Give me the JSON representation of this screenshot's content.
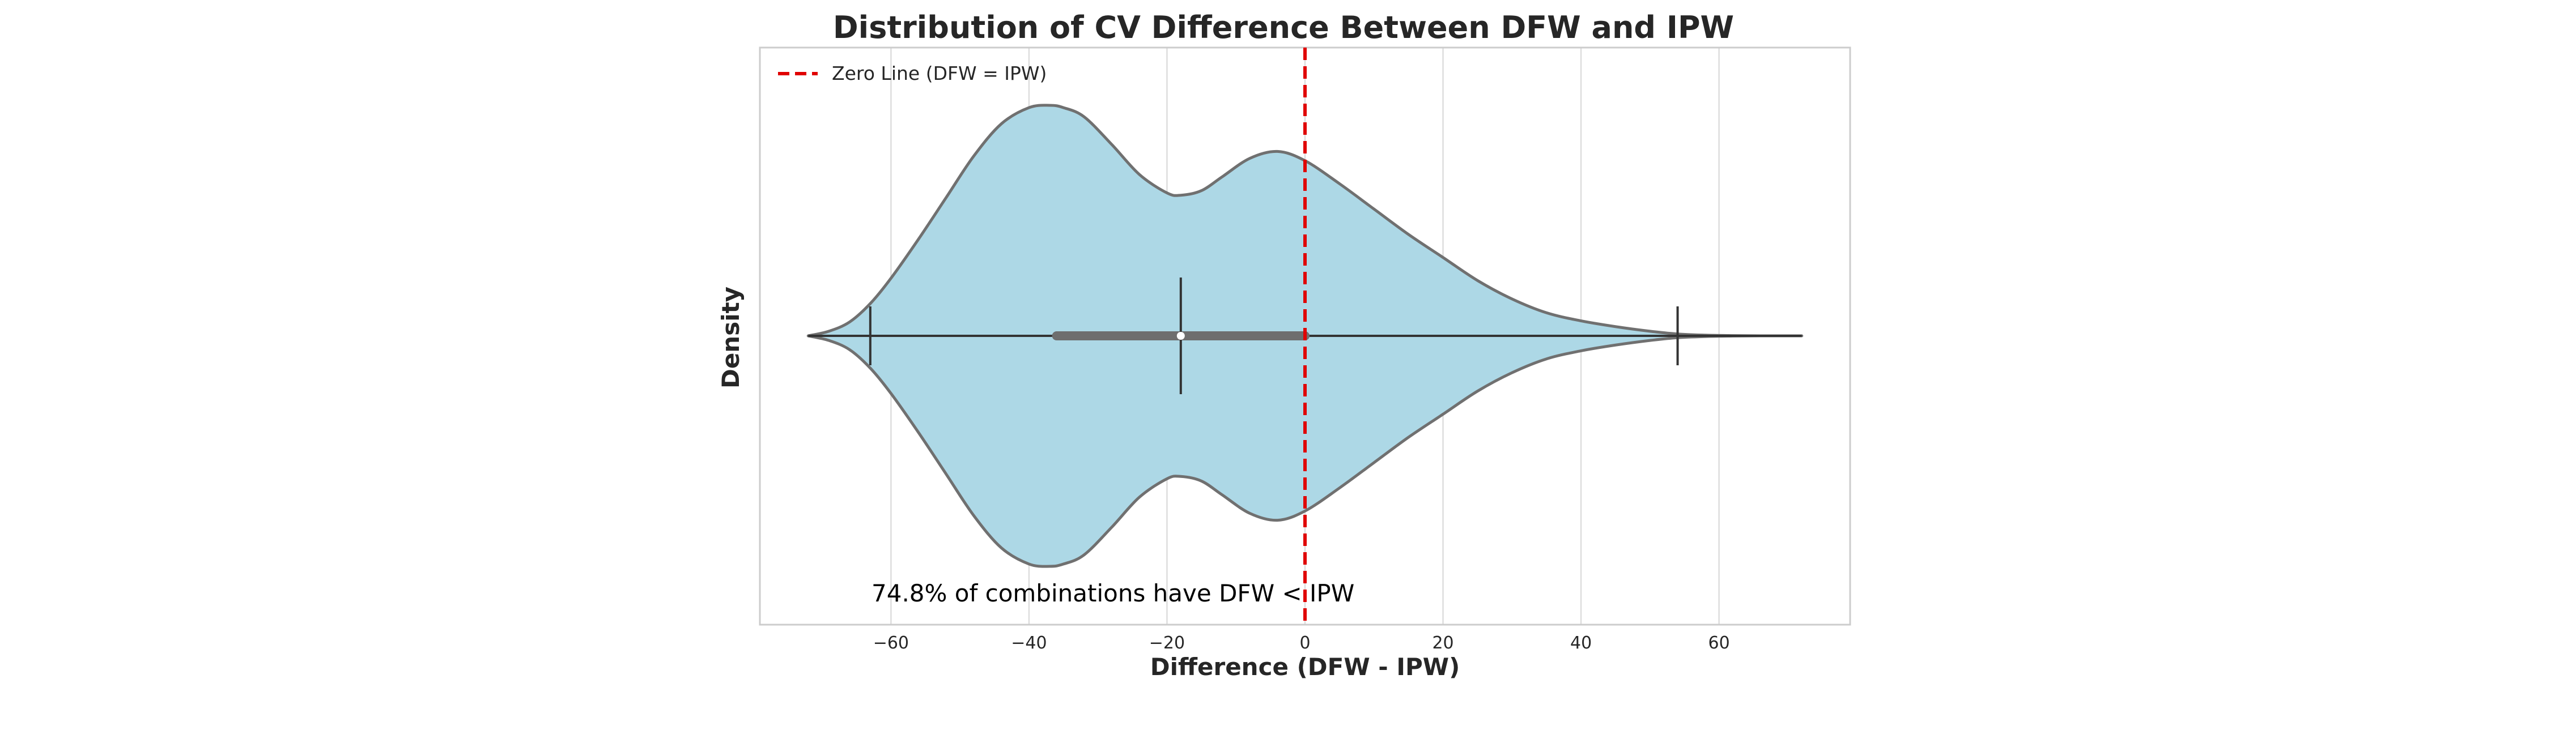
{
  "chart_data": {
    "type": "violin",
    "title": "Distribution of CV Difference Between DFW and IPW",
    "xlabel": "Difference (DFW - IPW)",
    "ylabel": "Density",
    "xlim": [
      -79,
      79
    ],
    "xticks": [
      -60,
      -40,
      -20,
      0,
      20,
      40,
      60
    ],
    "xtick_labels": [
      "−60",
      "−40",
      "−20",
      "0",
      "20",
      "40",
      "60"
    ],
    "grid": true,
    "density_curve": {
      "x": [
        -72,
        -69,
        -66,
        -63,
        -60,
        -56,
        -52,
        -48,
        -44,
        -40,
        -37,
        -35,
        -32,
        -28,
        -24,
        -20,
        -18,
        -15,
        -12,
        -8,
        -4,
        0,
        5,
        10,
        15,
        20,
        25,
        30,
        35,
        40,
        45,
        50,
        54,
        58,
        62,
        66,
        72
      ],
      "density": [
        0.0,
        0.02,
        0.06,
        0.14,
        0.25,
        0.42,
        0.6,
        0.78,
        0.92,
        0.99,
        1.0,
        0.99,
        0.95,
        0.83,
        0.7,
        0.62,
        0.61,
        0.63,
        0.69,
        0.77,
        0.8,
        0.76,
        0.66,
        0.55,
        0.44,
        0.34,
        0.24,
        0.16,
        0.1,
        0.065,
        0.04,
        0.02,
        0.008,
        0.003,
        0.001,
        0.0,
        0.0
      ]
    },
    "summary": {
      "min": -63,
      "max": 54,
      "q1": -36,
      "q3": 0,
      "median": -18,
      "whisker_low": -72,
      "whisker_high": 72
    },
    "fill_color": "#add8e6",
    "edge_color": "#707070",
    "reference_line": {
      "x": 0,
      "label": "Zero Line (DFW = IPW)",
      "color": "#e00000",
      "style": "dashed"
    },
    "legend": {
      "placement": "upper-left",
      "entries": [
        "Zero Line (DFW = IPW)"
      ]
    },
    "annotation": "74.8% of combinations have DFW < IPW"
  }
}
